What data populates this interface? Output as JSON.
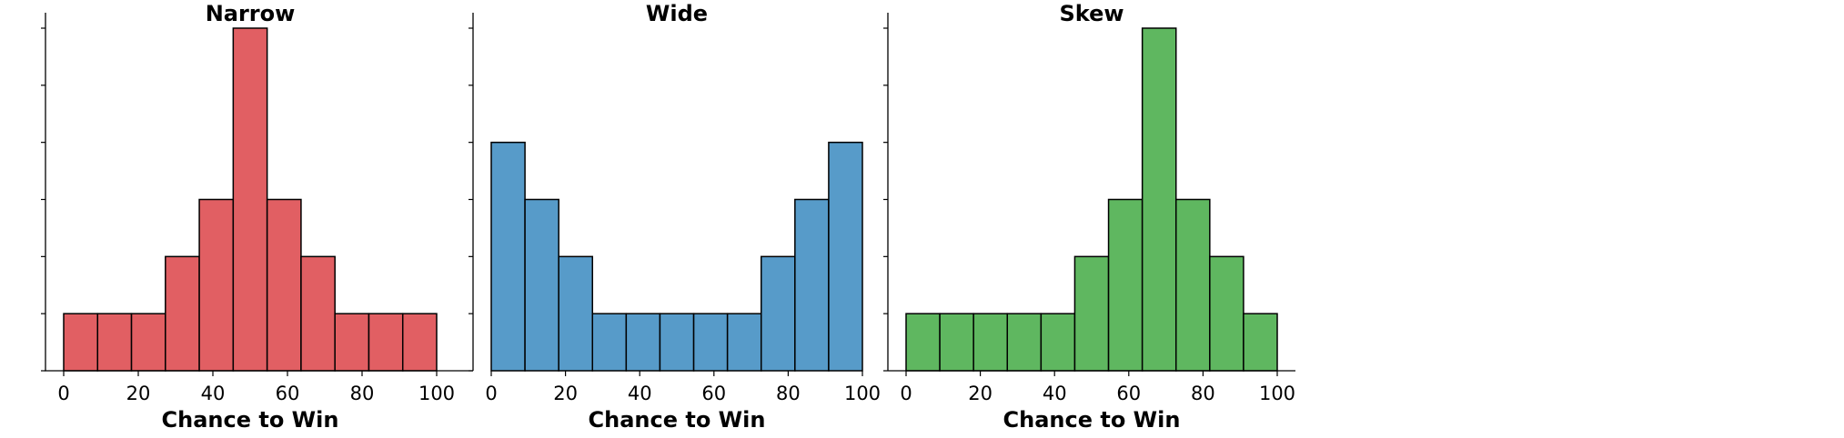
{
  "chart_data": [
    {
      "type": "bar",
      "title": "Narrow",
      "xlabel": "Chance to Win",
      "ylabel": "",
      "color": "#e15f63",
      "bin_edges": [
        0,
        9.09,
        18.18,
        27.27,
        36.36,
        45.45,
        54.55,
        63.64,
        72.73,
        81.82,
        90.91,
        100
      ],
      "values": [
        1,
        1,
        1,
        2,
        3,
        6,
        3,
        2,
        1,
        1,
        1
      ],
      "xlim": [
        -5,
        110
      ],
      "ylim": [
        0,
        6
      ],
      "xticks": [
        0,
        20,
        40,
        60,
        80,
        100
      ],
      "yticks": [
        0,
        1,
        2,
        3,
        4,
        5,
        6
      ],
      "ytick_labels_visible": false,
      "grid": false
    },
    {
      "type": "bar",
      "title": "Wide",
      "xlabel": "Chance to Win",
      "ylabel": "",
      "color": "#579bc9",
      "bin_edges": [
        0,
        9.09,
        18.18,
        27.27,
        36.36,
        45.45,
        54.55,
        63.64,
        72.73,
        81.82,
        90.91,
        100
      ],
      "values": [
        4,
        3,
        2,
        1,
        1,
        1,
        1,
        1,
        2,
        3,
        4
      ],
      "xlim": [
        -5,
        105
      ],
      "ylim": [
        0,
        6
      ],
      "xticks": [
        0,
        20,
        40,
        60,
        80,
        100
      ],
      "yticks": [
        0,
        1,
        2,
        3,
        4,
        5,
        6
      ],
      "ytick_labels_visible": false,
      "grid": false
    },
    {
      "type": "bar",
      "title": "Skew",
      "xlabel": "Chance to Win",
      "ylabel": "",
      "color": "#5fb760",
      "bin_edges": [
        0,
        9.09,
        18.18,
        27.27,
        36.36,
        45.45,
        54.55,
        63.64,
        72.73,
        81.82,
        90.91,
        100
      ],
      "values": [
        1,
        1,
        1,
        1,
        1,
        2,
        3,
        6,
        3,
        2,
        1
      ],
      "xlim": [
        -5,
        105
      ],
      "ylim": [
        0,
        6
      ],
      "xticks": [
        0,
        20,
        40,
        60,
        80,
        100
      ],
      "yticks": [
        0,
        1,
        2,
        3,
        4,
        5,
        6
      ],
      "ytick_labels_visible": false,
      "grid": false
    }
  ]
}
